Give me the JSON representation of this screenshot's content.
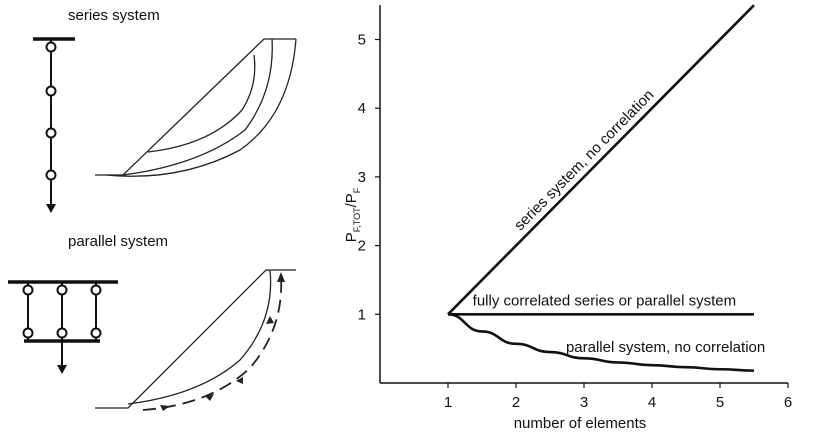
{
  "panels": {
    "series_label": "series system",
    "parallel_label": "parallel system"
  },
  "chart_data": {
    "type": "line",
    "xlabel": "number of elements",
    "ylabel_main": "P",
    "ylabel_sub1": "F,TOT",
    "ylabel_sub2": "F",
    "xlim": [
      0,
      6
    ],
    "ylim": [
      0,
      5.5
    ],
    "xticks": [
      1,
      2,
      3,
      4,
      5,
      6
    ],
    "yticks": [
      1,
      2,
      3,
      4,
      5
    ],
    "series": [
      {
        "name": "series system, no correlation",
        "x": [
          1,
          5.5
        ],
        "y": [
          1,
          5.5
        ]
      },
      {
        "name": "fully correlated series or parallel system",
        "x": [
          1,
          5.5
        ],
        "y": [
          1,
          1
        ]
      },
      {
        "name": "parallel system, no correlation",
        "x": [
          1,
          1.5,
          2,
          2.5,
          3,
          3.5,
          4,
          4.5,
          5,
          5.5
        ],
        "y": [
          1,
          0.75,
          0.57,
          0.45,
          0.36,
          0.3,
          0.26,
          0.23,
          0.2,
          0.18
        ]
      }
    ]
  }
}
